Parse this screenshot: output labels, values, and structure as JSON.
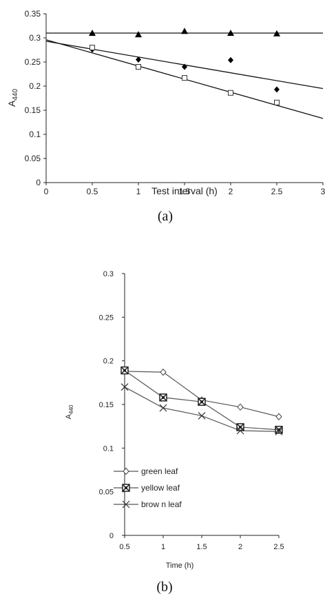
{
  "chart_data": [
    {
      "type": "scatter",
      "caption": "(a)",
      "xlabel": "Test interval (h)",
      "ylabel_main": "A",
      "ylabel_sub": "440",
      "xlim": [
        0,
        3
      ],
      "ylim": [
        0,
        0.35
      ],
      "xticks": [
        "0",
        "0.5",
        "1",
        "1.5",
        "2",
        "2.5",
        "3"
      ],
      "yticks": [
        "0",
        "0.05",
        "0.1",
        "0.15",
        "0.2",
        "0.25",
        "0.3",
        "0.35"
      ],
      "grid": false,
      "series": [
        {
          "marker": "triangle-filled",
          "x": [
            0.5,
            1,
            1.5,
            2,
            2.5
          ],
          "y": [
            0.31,
            0.307,
            0.314,
            0.31,
            0.309
          ]
        },
        {
          "marker": "diamond-filled",
          "x": [
            0.5,
            1,
            1.5,
            2,
            2.5
          ],
          "y": [
            0.276,
            0.255,
            0.24,
            0.254,
            0.193
          ]
        },
        {
          "marker": "square-open",
          "x": [
            0.5,
            1,
            1.5,
            2,
            2.5
          ],
          "y": [
            0.28,
            0.24,
            0.217,
            0.186,
            0.166
          ]
        }
      ],
      "trendlines": [
        {
          "x": [
            0,
            3
          ],
          "y": [
            0.31,
            0.31
          ]
        },
        {
          "x": [
            0,
            3
          ],
          "y": [
            0.293,
            0.195
          ]
        },
        {
          "x": [
            0,
            3
          ],
          "y": [
            0.296,
            0.133
          ]
        }
      ]
    },
    {
      "type": "line",
      "caption": "(b)",
      "xlabel": "Time (h)",
      "ylabel_main": "A",
      "ylabel_sub": "440",
      "x": [
        0.5,
        1,
        1.5,
        2,
        2.5
      ],
      "xlim": [
        0.5,
        2.5
      ],
      "ylim": [
        0,
        0.3
      ],
      "xticks": [
        "0.5",
        "1",
        "1.5",
        "2",
        "2.5"
      ],
      "yticks": [
        "0",
        "0.05",
        "0.1",
        "0.15",
        "0.2",
        "0.25",
        "0.3"
      ],
      "grid": false,
      "legend_position": "bottom-left",
      "series": [
        {
          "name": "green leaf",
          "marker": "diamond-open",
          "values": [
            0.188,
            0.187,
            0.155,
            0.147,
            0.136
          ]
        },
        {
          "name": "yellow leaf",
          "marker": "square-x",
          "values": [
            0.189,
            0.158,
            0.153,
            0.124,
            0.121
          ]
        },
        {
          "name": "brow n leaf",
          "marker": "x",
          "values": [
            0.17,
            0.146,
            0.137,
            0.12,
            0.119
          ]
        }
      ]
    }
  ]
}
